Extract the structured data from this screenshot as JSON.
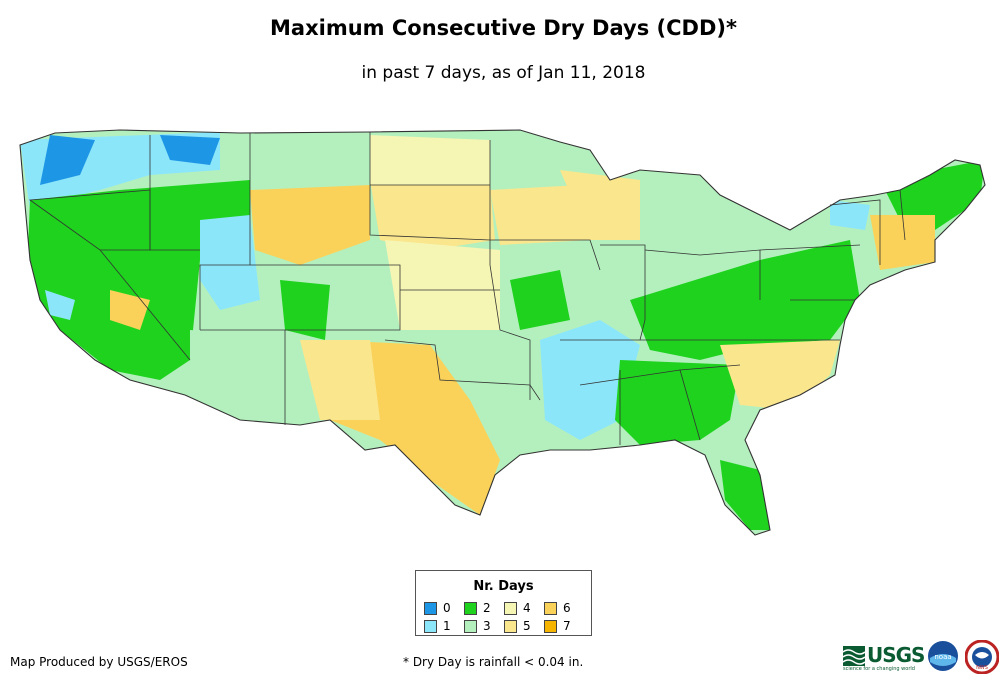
{
  "title": "Maximum Consecutive Dry Days (CDD)*",
  "subtitle": "in past 7 days, as of Jan 11, 2018",
  "legend": {
    "title": "Nr. Days",
    "items": [
      {
        "label": "0",
        "color": "#1e96e6"
      },
      {
        "label": "2",
        "color": "#1ed21e"
      },
      {
        "label": "4",
        "color": "#f5f5b4"
      },
      {
        "label": "6",
        "color": "#fad25a"
      },
      {
        "label": "1",
        "color": "#8ce6fa"
      },
      {
        "label": "3",
        "color": "#b4f0be"
      },
      {
        "label": "5",
        "color": "#fae68c"
      },
      {
        "label": "7",
        "color": "#f5b400"
      }
    ]
  },
  "credit": "Map Produced by USGS/EROS",
  "footnote": "* Dry Day is rainfall < 0.04 in.",
  "logos": {
    "usgs": "USGS",
    "usgs_tagline": "science for a changing world",
    "noaa": "noaa",
    "nws": "NWS"
  }
}
